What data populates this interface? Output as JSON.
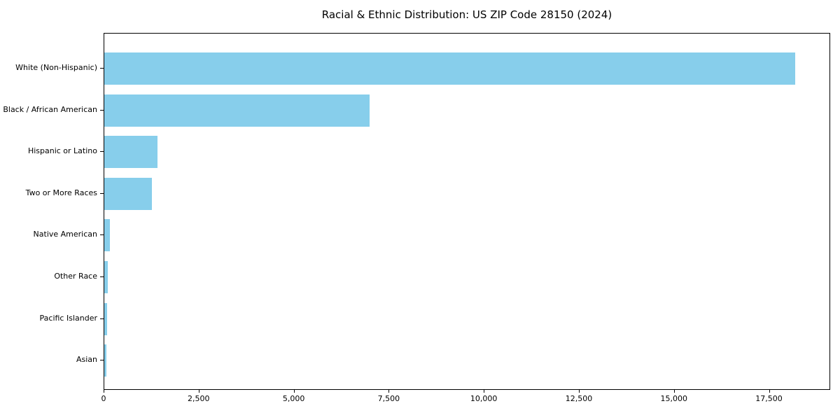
{
  "chart_data": {
    "type": "bar",
    "orientation": "horizontal",
    "title": "Racial & Ethnic Distribution: US ZIP Code 28150 (2024)",
    "categories": [
      "White (Non-Hispanic)",
      "Black / African American",
      "Hispanic or Latino",
      "Two or More Races",
      "Native American",
      "Other Race",
      "Pacific Islander",
      "Asian"
    ],
    "values": [
      18200,
      7000,
      1400,
      1250,
      150,
      90,
      80,
      55
    ],
    "xlabel": "",
    "ylabel": "",
    "xlim": [
      0,
      19110
    ],
    "xticks": {
      "values": [
        0,
        2500,
        5000,
        7500,
        10000,
        12500,
        15000,
        17500
      ],
      "labels": [
        "0",
        "2,500",
        "5,000",
        "7,500",
        "10,000",
        "12,500",
        "15,000",
        "17,500"
      ]
    },
    "grid": false,
    "legend": null,
    "colors": {
      "bar_fill": "#87CEEB",
      "spine": "#000000",
      "text": "#000000",
      "background": "#ffffff"
    }
  }
}
